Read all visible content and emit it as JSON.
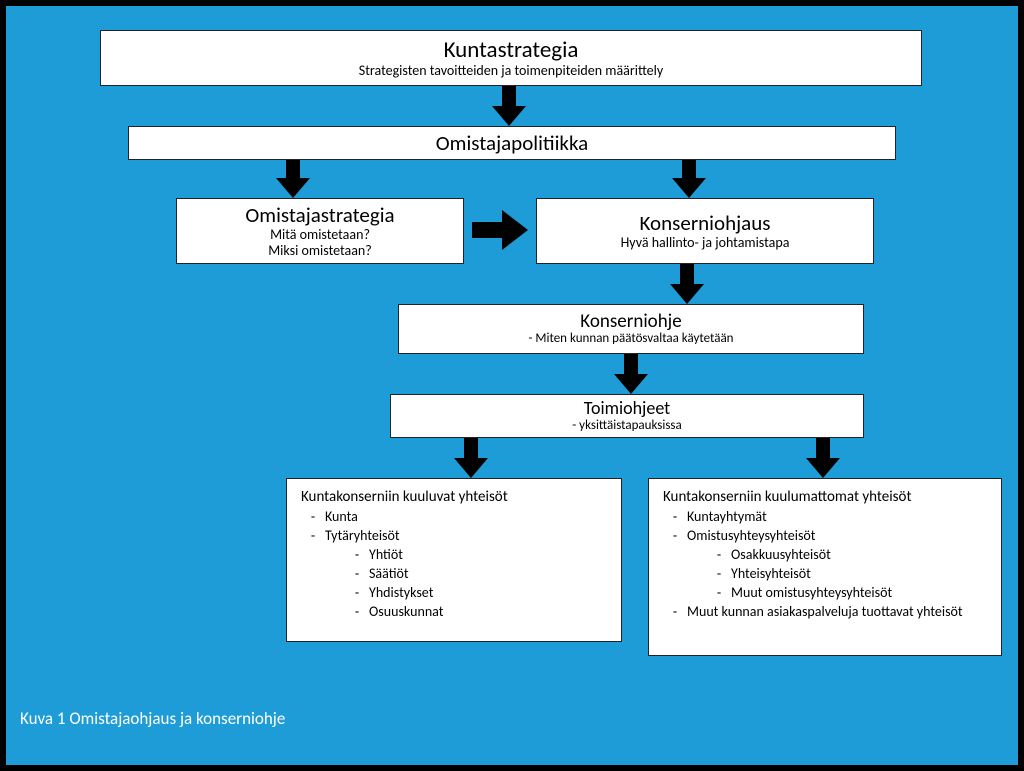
{
  "type": "flowchart",
  "background_color": "#1e9cd7",
  "frame_color": "#000000",
  "box_bg": "#ffffff",
  "box_border": "#333333",
  "arrow_color": "#000000",
  "caption_color": "#ffffff",
  "fonts": {
    "title_lg": 23,
    "title_md": 21,
    "sub": 14,
    "list": 14,
    "caption": 17
  },
  "nodes": {
    "kuntastrategia": {
      "title": "Kuntastrategia",
      "sub": "Strategisten tavoitteiden ja toimenpiteiden määrittely"
    },
    "omistajapolitiikka": {
      "title": "Omistajapolitiikka"
    },
    "omistajastrategia": {
      "title": "Omistajastrategia",
      "line1": "Mitä omistetaan?",
      "line2": "Miksi omistetaan?"
    },
    "konserniohjaus": {
      "title": "Konserniohjaus",
      "sub": "Hyvä hallinto- ja johtamistapa"
    },
    "konserniohje": {
      "title": "Konserniohje",
      "sub": "-   Miten kunnan päätösvaltaa käytetään"
    },
    "toimiohjeet": {
      "title": "Toimiohjeet",
      "sub": "- yksittäistapauksissa"
    },
    "left_list": {
      "heading": "Kuntakonserniin kuuluvat yhteisöt",
      "items": [
        {
          "label": "Kunta"
        },
        {
          "label": "Tytäryhteisöt",
          "children": [
            "Yhtiöt",
            "Säätiöt",
            "Yhdistykset",
            "Osuuskunnat"
          ]
        }
      ]
    },
    "right_list": {
      "heading": "Kuntakonserniin kuulumattomat yhteisöt",
      "items": [
        {
          "label": "Kuntayhtymät"
        },
        {
          "label": "Omistusyhteysyhteisöt",
          "children": [
            "Osakkuusyhteisöt",
            "Yhteisyhteisöt",
            "Muut omistusyhteysyhteisöt"
          ]
        },
        {
          "label": "Muut kunnan asiakaspalveluja tuottavat yhteisöt"
        }
      ]
    }
  },
  "caption": "Kuva 1 Omistajaohjaus ja konserniohje"
}
